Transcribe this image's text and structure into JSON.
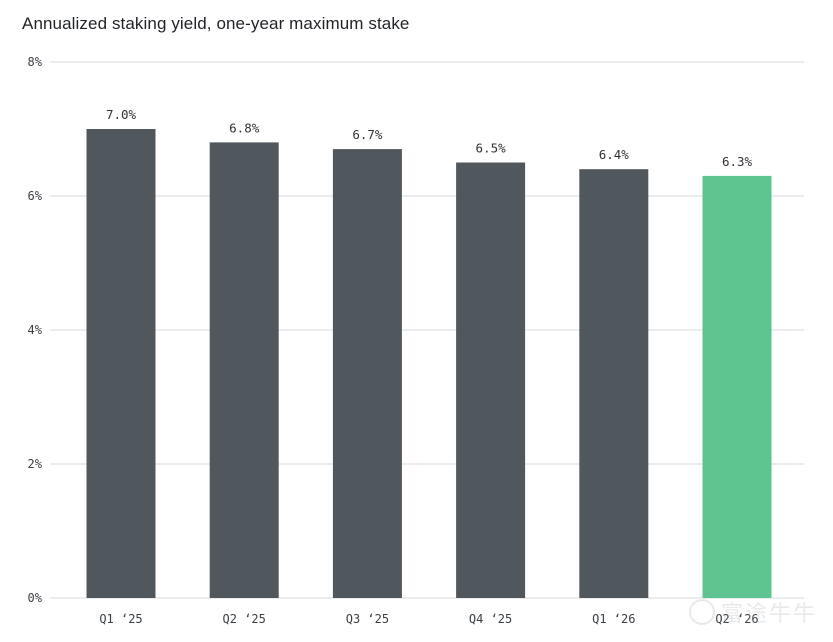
{
  "chart_data": {
    "type": "bar",
    "title": "Annualized staking yield, one-year maximum stake",
    "xlabel": "",
    "ylabel": "",
    "categories": [
      "Q1 ‘25",
      "Q2 ‘25",
      "Q3 ‘25",
      "Q4 ‘25",
      "Q1 ‘26",
      "Q2 ‘26"
    ],
    "values": [
      7.0,
      6.8,
      6.7,
      6.5,
      6.4,
      6.3
    ],
    "data_labels": [
      "7.0%",
      "6.8%",
      "6.7%",
      "6.5%",
      "6.4%",
      "6.3%"
    ],
    "ylim": [
      0,
      8
    ],
    "yticks": [
      0,
      2,
      4,
      6,
      8
    ],
    "ytick_labels": [
      "0%",
      "2%",
      "4%",
      "6%",
      "8%"
    ],
    "grid": true,
    "legend": "none",
    "colors": {
      "bar_default": "#51585d",
      "bar_highlight": "#5ec48f",
      "grid": "#d6d9dc"
    },
    "highlight_index": 5
  },
  "watermark": {
    "text": "富途牛牛",
    "icon": "futu-logo-icon"
  }
}
